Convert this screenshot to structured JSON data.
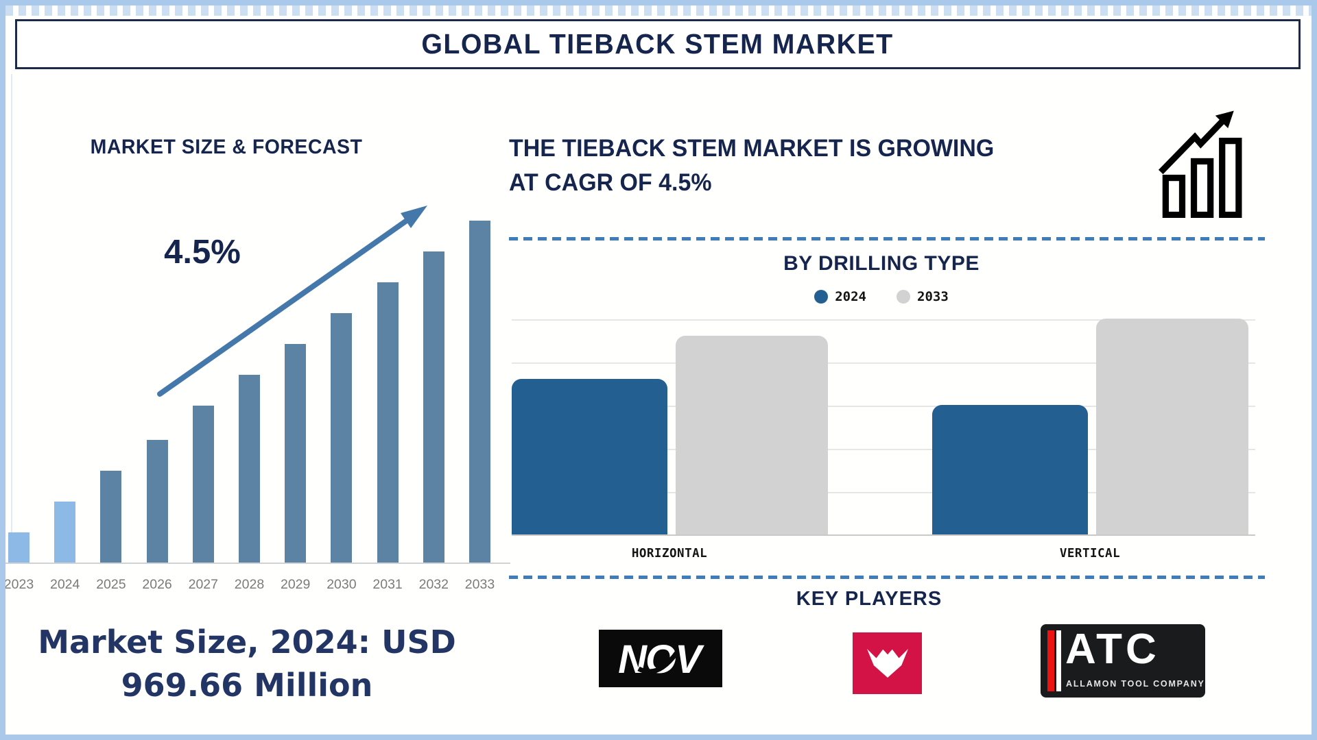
{
  "page": {
    "title": "GLOBAL TIEBACK STEM MARKET"
  },
  "left_chart": {
    "growth_label": "4.5%"
  },
  "highlight": {
    "line1": "THE TIEBACK STEM MARKET IS GROWING",
    "line2": "AT CAGR OF 4.5%"
  },
  "market_size": {
    "line1": "Market Size, 2024: USD",
    "line2": "969.66 Million"
  },
  "key_players": {
    "title": "KEY PLAYERS",
    "logos": [
      {
        "name": "nov-logo",
        "text": "NOV"
      },
      {
        "name": "w-emblem-logo",
        "text": ""
      },
      {
        "name": "atc-logo",
        "text": "ATC",
        "subtitle": "ALLAMON TOOL COMPANY"
      }
    ]
  },
  "chart_data": [
    {
      "type": "bar",
      "title": "MARKET SIZE & FORECAST",
      "categories": [
        "2023",
        "2024",
        "2025",
        "2026",
        "2027",
        "2028",
        "2029",
        "2030",
        "2031",
        "2032",
        "2033"
      ],
      "values": [
        9,
        18,
        27,
        36,
        46,
        55,
        64,
        73,
        82,
        91,
        100
      ],
      "ylim": [
        0,
        100
      ],
      "xlabel": "",
      "ylabel": "",
      "grid": false,
      "legend_position": "none",
      "highlight_first_n": 2,
      "annotation": "4.5%"
    },
    {
      "type": "bar",
      "title": "BY DRILLING TYPE",
      "categories": [
        "HORIZONTAL",
        "VERTICAL"
      ],
      "series": [
        {
          "name": "2024",
          "values": [
            72,
            60
          ]
        },
        {
          "name": "2033",
          "values": [
            92,
            100
          ]
        }
      ],
      "ylim": [
        0,
        100
      ],
      "xlabel": "",
      "ylabel": "",
      "grid": true,
      "legend_position": "top-center"
    }
  ],
  "colors": {
    "navy": "#16254e",
    "market_text": "#233564",
    "left_bar_light": "#8cb9e6",
    "left_bar_dark": "#5d83a4",
    "series_2024": "#235f91",
    "series_2033": "#d2d2d2",
    "arrow": "#4478ab",
    "dash_line": "#3e7cbc",
    "w_logo_red": "#d31245",
    "atc_stripe_red": "#ee1313"
  }
}
